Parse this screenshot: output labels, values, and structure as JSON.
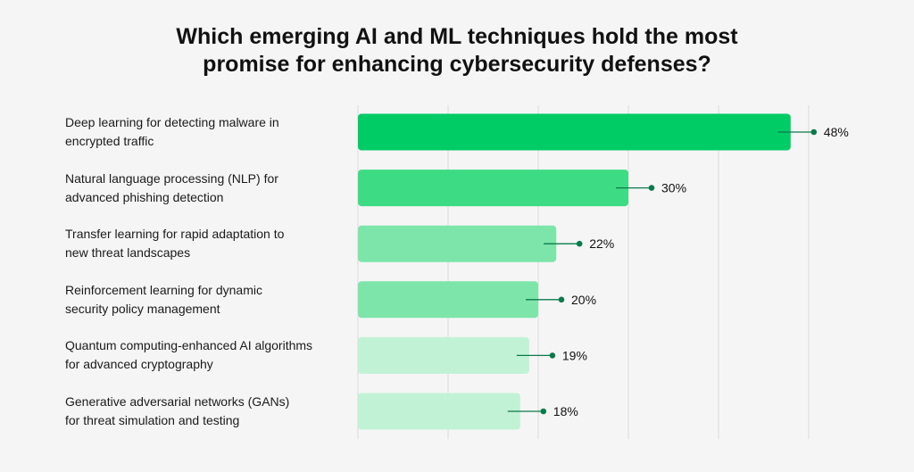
{
  "chart_data": {
    "type": "bar",
    "orientation": "horizontal",
    "title_lines": [
      "Which emerging AI and ML techniques hold the most",
      "promise for enhancing cybersecurity defenses?"
    ],
    "categories": [
      [
        "Deep learning for detecting malware in",
        "encrypted traffic"
      ],
      [
        "Natural language processing (NLP) for",
        "advanced phishing detection"
      ],
      [
        "Transfer learning for rapid adaptation to",
        "new threat landscapes"
      ],
      [
        "Reinforcement learning for dynamic",
        "security policy management"
      ],
      [
        "Quantum computing-enhanced AI algorithms",
        "for advanced cryptography"
      ],
      [
        "Generative adversarial networks (GANs)",
        "for threat simulation and testing"
      ]
    ],
    "values": [
      48,
      30,
      22,
      20,
      19,
      18
    ],
    "value_labels": [
      "48%",
      "30%",
      "22%",
      "20%",
      "19%",
      "18%"
    ],
    "bar_colors": [
      "#00cc66",
      "#3ddc84",
      "#7de5aa",
      "#7de5aa",
      "#c2f2d5",
      "#c2f2d5"
    ],
    "xlim": [
      0,
      50
    ],
    "grid": true,
    "colors": {
      "background": "#f5f5f5",
      "grid": "#dcdcdc",
      "marker": "#0b7a4b",
      "text": "#111111"
    }
  }
}
